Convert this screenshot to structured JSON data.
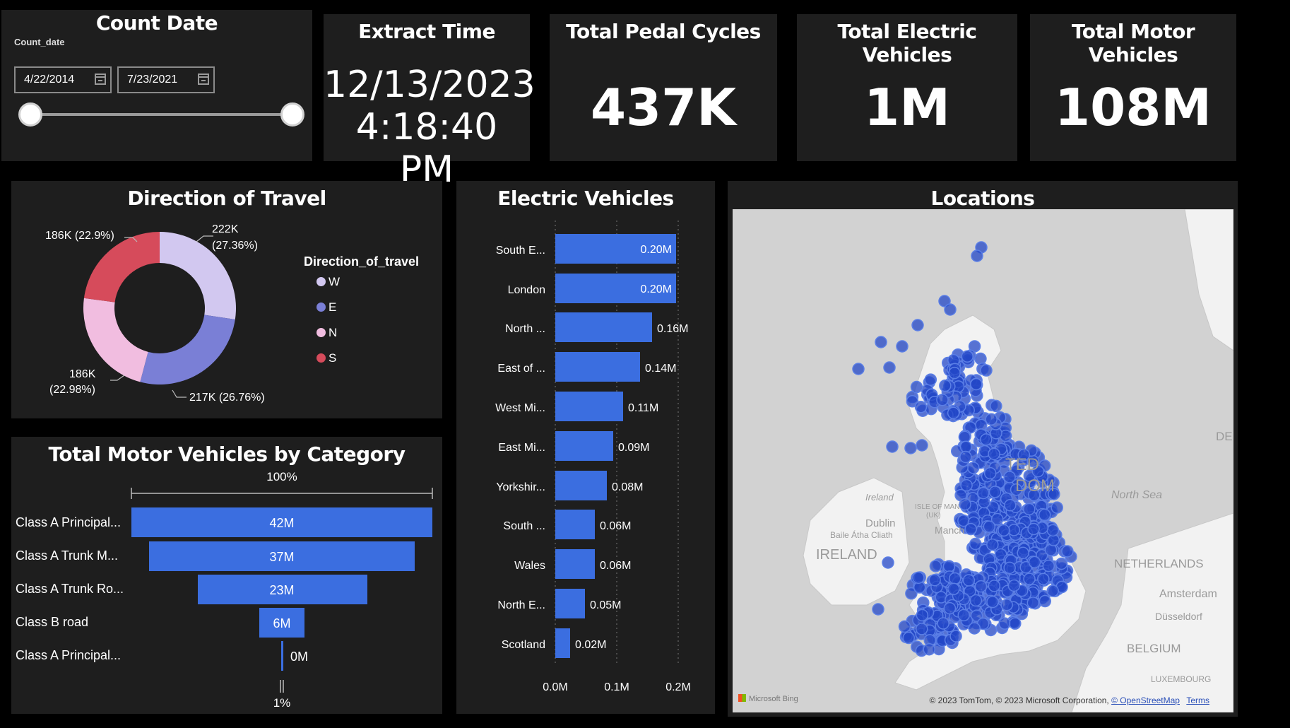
{
  "count_date": {
    "title": "Count Date",
    "field_label": "Count_date",
    "start_date": "4/22/2014",
    "end_date": "7/23/2021",
    "slider_range": [
      0,
      1
    ]
  },
  "cards": {
    "extract_time": {
      "title": "Extract Time",
      "date": "12/13/2023",
      "time": "4:18:40 PM"
    },
    "pedal_cycles": {
      "title": "Total Pedal Cycles",
      "value": "437K"
    },
    "electric_vehicles": {
      "title": "Total Electric Vehicles",
      "value": "1M"
    },
    "motor_vehicles": {
      "title": "Total Motor Vehicles",
      "value": "108M"
    }
  },
  "direction": {
    "title": "Direction of Travel",
    "legend_title": "Direction_of_travel",
    "colors": {
      "W": "#d2c8f0",
      "E": "#7a7fd6",
      "N": "#f1bde0",
      "S": "#d64b5b"
    },
    "labels": {
      "W": [
        "222K",
        "(27.36%)"
      ],
      "E": [
        "217K (26.76%)"
      ],
      "N": [
        "186K",
        "(22.98%)"
      ],
      "S": [
        "186K (22.9%)"
      ]
    },
    "legend": [
      "W",
      "E",
      "N",
      "S"
    ]
  },
  "category": {
    "title": "Total Motor Vehicles by Category",
    "top_label": "100%",
    "bottom_label": "1%",
    "rows": [
      {
        "label": "Class A Principal...",
        "value_label": "42M"
      },
      {
        "label": "Class A Trunk M...",
        "value_label": "37M"
      },
      {
        "label": "Class A Trunk Ro...",
        "value_label": "23M"
      },
      {
        "label": "Class B road",
        "value_label": "6M"
      },
      {
        "label": "Class A Principal...",
        "value_label": "0M"
      }
    ]
  },
  "ev": {
    "title": "Electric Vehicles",
    "axis_ticks": [
      "0.0M",
      "0.1M",
      "0.2M"
    ],
    "bar_color": "#3b6ee0",
    "rows": [
      {
        "label": "South E...",
        "value_label": "0.20M"
      },
      {
        "label": "London",
        "value_label": "0.20M"
      },
      {
        "label": "North ...",
        "value_label": "0.16M"
      },
      {
        "label": "East of ...",
        "value_label": "0.14M"
      },
      {
        "label": "West Mi...",
        "value_label": "0.11M"
      },
      {
        "label": "East Mi...",
        "value_label": "0.09M"
      },
      {
        "label": "Yorkshir...",
        "value_label": "0.08M"
      },
      {
        "label": "South ...",
        "value_label": "0.06M"
      },
      {
        "label": "Wales",
        "value_label": "0.06M"
      },
      {
        "label": "North E...",
        "value_label": "0.05M"
      },
      {
        "label": "Scotland",
        "value_label": "0.02M"
      }
    ]
  },
  "map": {
    "title": "Locations",
    "place_labels": {
      "ireland_small": "Ireland",
      "dublin": "Dublin",
      "baile": "Baile Átha Cliath",
      "ireland": "IRELAND",
      "isle": "ISLE OF MAN",
      "isle_uk": "(UK)",
      "manchester": "Manch",
      "united": "TED",
      "kingdom": "DOM",
      "north_sea": "North Sea",
      "netherlands": "NETHERLANDS",
      "amsterdam": "Amsterdam",
      "dusseldorf": "Düsseldorf",
      "belgium": "BELGIUM",
      "luxembourg": "LUXEMBOURG",
      "de": "DE"
    },
    "bing_label": "Microsoft Bing",
    "copyright": "© 2023 TomTom, © 2023 Microsoft Corporation,",
    "osm_link": "© OpenStreetMap",
    "terms_link": "Terms",
    "marker_color": "#2347c7",
    "land_color": "#f2f2f2",
    "sea_color": "#d2d2d2"
  }
}
